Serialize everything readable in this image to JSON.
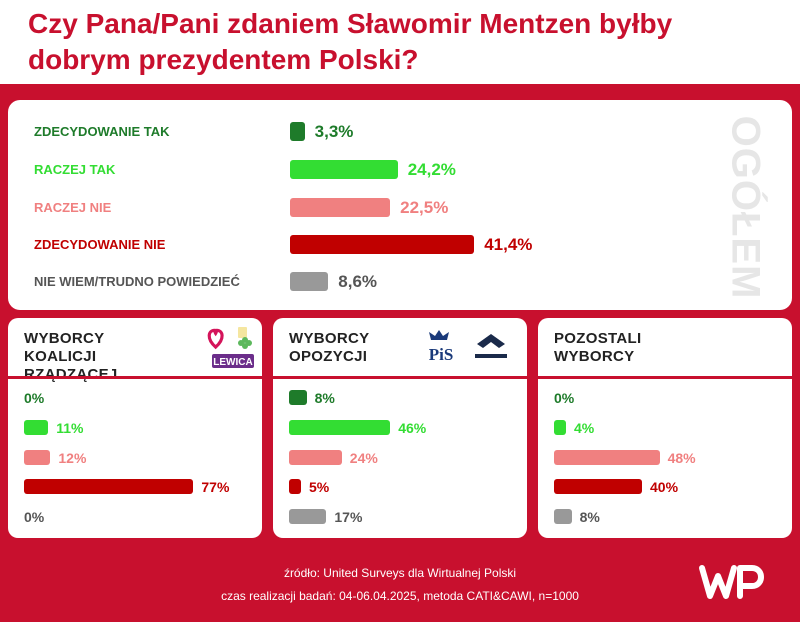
{
  "title": "Czy Pana/Pani zdaniem Sławomir Mentzen byłby dobrym prezydentem Polski?",
  "side_label": "OGÓŁEM",
  "colors": {
    "zdecydowanie_tak": "#1e7b2a",
    "raczej_tak": "#33dd33",
    "raczej_nie": "#f08080",
    "zdecydowanie_nie": "#c00000",
    "nie_wiem": "#999999",
    "brand_red": "#c8102e"
  },
  "chart_data": [
    {
      "type": "bar",
      "title": "OGÓŁEM",
      "categories": [
        "ZDECYDOWANIE TAK",
        "RACZEJ TAK",
        "RACZEJ NIE",
        "ZDECYDOWANIE NIE",
        "NIE WIEM/TRUDNO POWIEDZIEĆ"
      ],
      "values": [
        3.3,
        24.2,
        22.5,
        41.4,
        8.6
      ],
      "value_labels": [
        "3,3%",
        "24,2%",
        "22,5%",
        "41,4%",
        "8,6%"
      ],
      "xlim": [
        0,
        100
      ]
    },
    {
      "type": "bar",
      "title": "WYBORCY KOALICJI RZĄDZĄCEJ",
      "categories": [
        "ZDECYDOWANIE TAK",
        "RACZEJ TAK",
        "RACZEJ NIE",
        "ZDECYDOWANIE NIE",
        "NIE WIEM/TRUDNO POWIEDZIEĆ"
      ],
      "values": [
        0,
        11,
        12,
        77,
        0
      ],
      "value_labels": [
        "0%",
        "11%",
        "12%",
        "77%",
        "0%"
      ],
      "xlim": [
        0,
        100
      ]
    },
    {
      "type": "bar",
      "title": "WYBORCY OPOZYCJI",
      "categories": [
        "ZDECYDOWANIE TAK",
        "RACZEJ TAK",
        "RACZEJ NIE",
        "ZDECYDOWANIE NIE",
        "NIE WIEM/TRUDNO POWIEDZIEĆ"
      ],
      "values": [
        8,
        46,
        24,
        5,
        17
      ],
      "value_labels": [
        "8%",
        "46%",
        "24%",
        "5%",
        "17%"
      ],
      "xlim": [
        0,
        100
      ]
    },
    {
      "type": "bar",
      "title": "POZOSTALI WYBORCY",
      "categories": [
        "ZDECYDOWANIE TAK",
        "RACZEJ TAK",
        "RACZEJ NIE",
        "ZDECYDOWANIE NIE",
        "NIE WIEM/TRUDNO POWIEDZIEĆ"
      ],
      "values": [
        0,
        4,
        48,
        40,
        8
      ],
      "value_labels": [
        "0%",
        "4%",
        "48%",
        "40%",
        "8%"
      ],
      "xlim": [
        0,
        100
      ]
    }
  ],
  "groups": [
    {
      "title_line1": "WYBORCY",
      "title_line2": "KOALICJI RZĄDZĄCEJ",
      "logos": [
        "heart-logo",
        "clover-logo",
        "lewica-logo"
      ],
      "logo_text": "LEWICA"
    },
    {
      "title_line1": "WYBORCY",
      "title_line2": "OPOZYCJI",
      "logos": [
        "pis-logo",
        "konfederacja-logo"
      ],
      "logo_text": "PiS"
    },
    {
      "title_line1": "POZOSTALI",
      "title_line2": "WYBORCY",
      "logos": []
    }
  ],
  "footer": {
    "source": "źródło: United Surveys dla Wirtualnej Polski",
    "details": "czas realizacji badań: 04-06.04.2025, metoda CATI&CAWI, n=1000",
    "logo_name": "wp-logo"
  }
}
